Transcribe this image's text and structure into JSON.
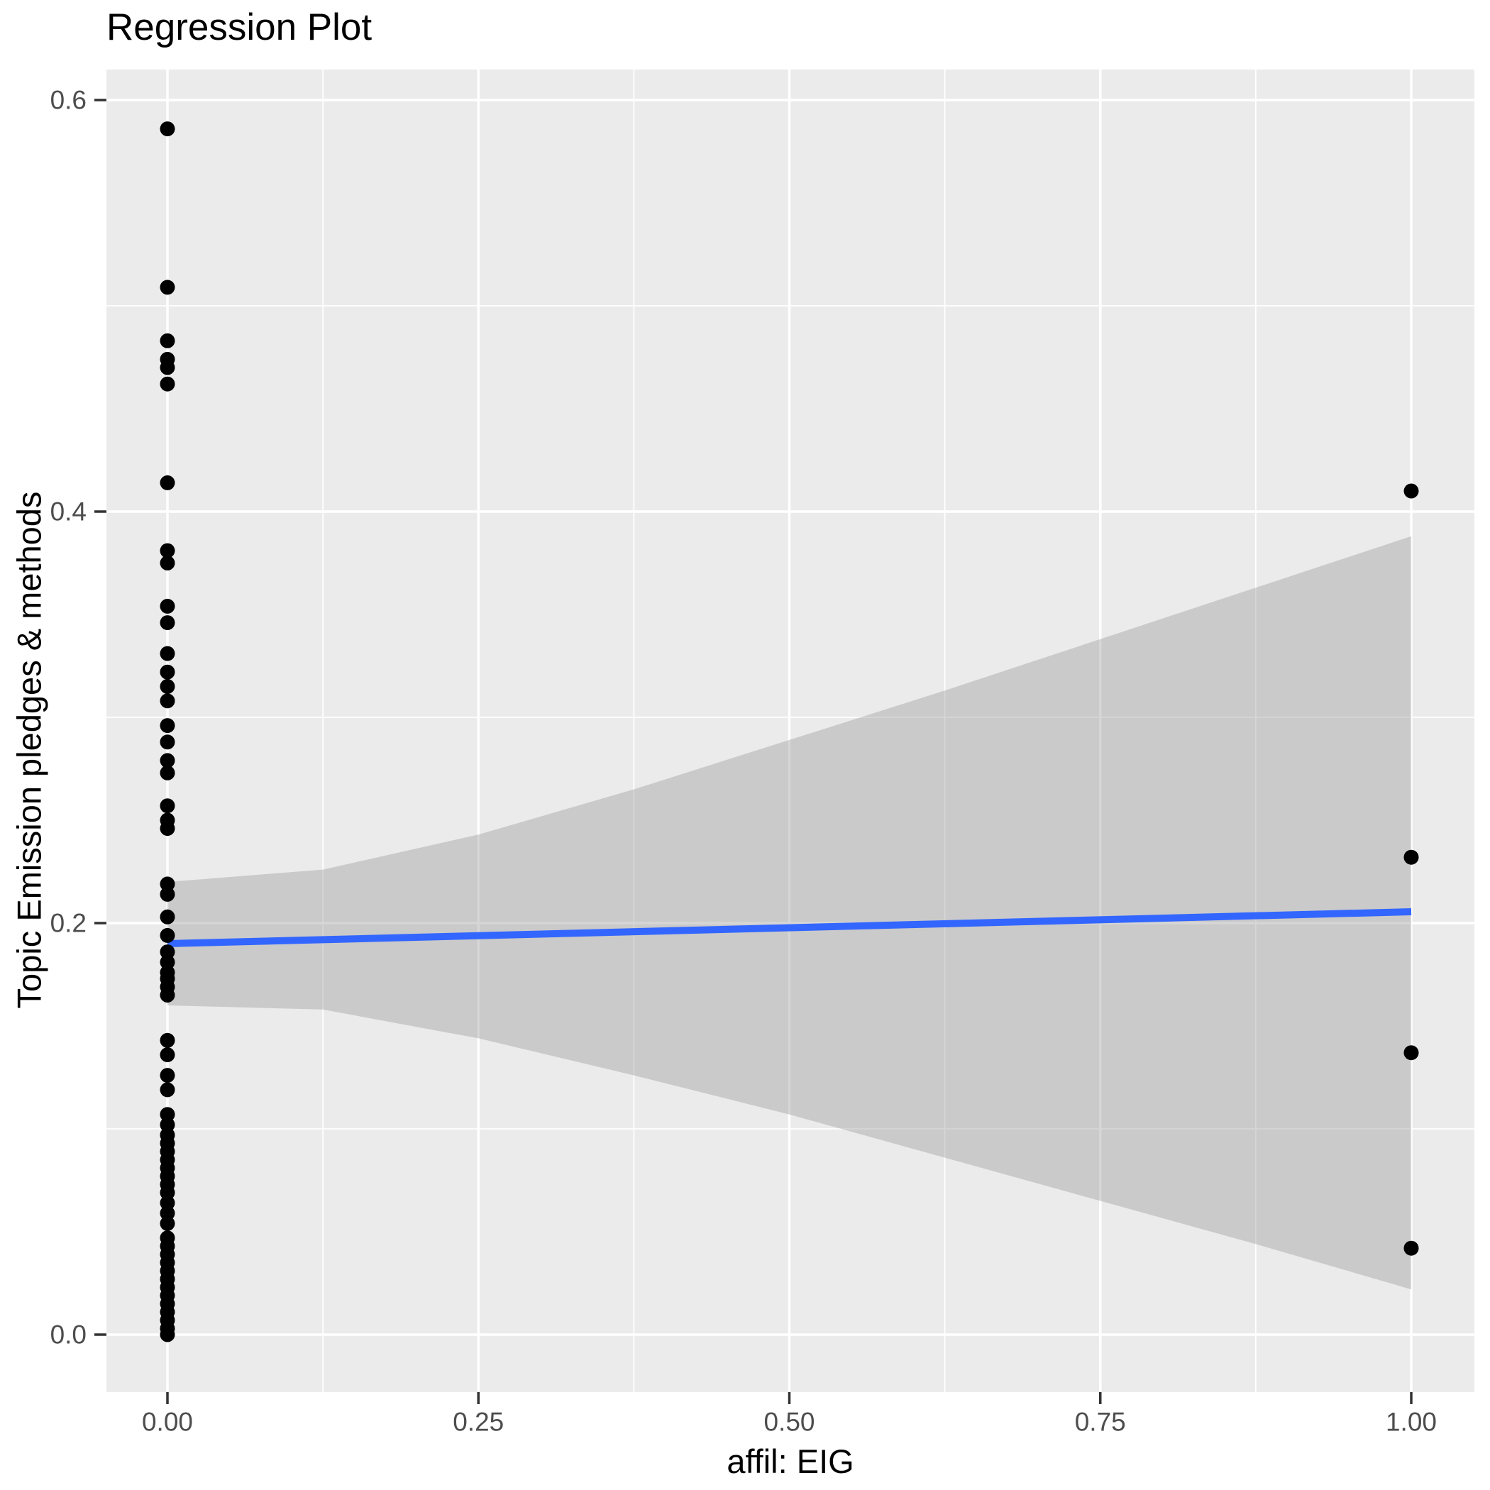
{
  "chart_data": {
    "type": "scatter",
    "title": "Regression Plot",
    "xlabel": "affil: EIG",
    "ylabel": "Topic Emission pledges & methods",
    "xlim": [
      -0.049,
      1.051
    ],
    "ylim": [
      -0.028,
      0.615
    ],
    "grid": "on",
    "legend": "none",
    "x_ticks": {
      "values": [
        0.0,
        0.25,
        0.5,
        0.75,
        1.0
      ],
      "labels": [
        "0.00",
        "0.25",
        "0.50",
        "0.75",
        "1.00"
      ]
    },
    "y_ticks": {
      "values": [
        0.0,
        0.2,
        0.4,
        0.6
      ],
      "labels": [
        "0.0",
        "0.2",
        "0.4",
        "0.6"
      ]
    },
    "x_minor_ticks": [
      0.125,
      0.375,
      0.625,
      0.875
    ],
    "y_minor_ticks": [
      0.1,
      0.3,
      0.5
    ],
    "colors": {
      "panel_background": "#EBEBEB",
      "grid_major": "#FFFFFF",
      "grid_minor": "#FFFFFF",
      "points": "#000000",
      "regression_line": "#3366FF",
      "confidence_band": "#999999",
      "confidence_band_opacity": 0.4,
      "tick_text": "#4D4D4D",
      "tick_mark": "#333333",
      "title_text": "#000000"
    },
    "series": [
      {
        "name": "observations",
        "type": "scatter",
        "points": [
          [
            0,
            0.586
          ],
          [
            0,
            0.509
          ],
          [
            0,
            0.483
          ],
          [
            0,
            0.474
          ],
          [
            0,
            0.47
          ],
          [
            0,
            0.462
          ],
          [
            0,
            0.414
          ],
          [
            0,
            0.381
          ],
          [
            0,
            0.375
          ],
          [
            0,
            0.354
          ],
          [
            0,
            0.346
          ],
          [
            0,
            0.331
          ],
          [
            0,
            0.322
          ],
          [
            0,
            0.315
          ],
          [
            0,
            0.308
          ],
          [
            0,
            0.296
          ],
          [
            0,
            0.288
          ],
          [
            0,
            0.279
          ],
          [
            0,
            0.273
          ],
          [
            0,
            0.257
          ],
          [
            0,
            0.25
          ],
          [
            0,
            0.246
          ],
          [
            0,
            0.219
          ],
          [
            0,
            0.214
          ],
          [
            0,
            0.203
          ],
          [
            0,
            0.194
          ],
          [
            0,
            0.186
          ],
          [
            0,
            0.181
          ],
          [
            0,
            0.176
          ],
          [
            0,
            0.173
          ],
          [
            0,
            0.169
          ],
          [
            0,
            0.165
          ],
          [
            0,
            0.143
          ],
          [
            0,
            0.136
          ],
          [
            0,
            0.126
          ],
          [
            0,
            0.119
          ],
          [
            0,
            0.107
          ],
          [
            0,
            0.102
          ],
          [
            0,
            0.097
          ],
          [
            0,
            0.093
          ],
          [
            0,
            0.089
          ],
          [
            0,
            0.085
          ],
          [
            0,
            0.081
          ],
          [
            0,
            0.077
          ],
          [
            0,
            0.073
          ],
          [
            0,
            0.069
          ],
          [
            0,
            0.064
          ],
          [
            0,
            0.059
          ],
          [
            0,
            0.054
          ],
          [
            0,
            0.047
          ],
          [
            0,
            0.043
          ],
          [
            0,
            0.039
          ],
          [
            0,
            0.035
          ],
          [
            0,
            0.031
          ],
          [
            0,
            0.027
          ],
          [
            0,
            0.023
          ],
          [
            0,
            0.019
          ],
          [
            0,
            0.015
          ],
          [
            0,
            0.011
          ],
          [
            0,
            0.007
          ],
          [
            0,
            0.003
          ],
          [
            0,
            0.0
          ],
          [
            1,
            0.41
          ],
          [
            1,
            0.232
          ],
          [
            1,
            0.137
          ],
          [
            1,
            0.042
          ]
        ]
      },
      {
        "name": "regression-line",
        "type": "line",
        "points": [
          [
            0,
            0.19
          ],
          [
            1,
            0.2055
          ]
        ]
      },
      {
        "name": "confidence-band",
        "type": "area",
        "upper": [
          [
            0,
            0.22
          ],
          [
            0.125,
            0.226
          ],
          [
            0.25,
            0.243
          ],
          [
            0.375,
            0.265
          ],
          [
            0.5,
            0.289
          ],
          [
            0.625,
            0.313
          ],
          [
            0.75,
            0.338
          ],
          [
            0.875,
            0.363
          ],
          [
            1,
            0.388
          ]
        ],
        "lower": [
          [
            0,
            0.16
          ],
          [
            0.125,
            0.158
          ],
          [
            0.25,
            0.144
          ],
          [
            0.375,
            0.126
          ],
          [
            0.5,
            0.107
          ],
          [
            0.625,
            0.086
          ],
          [
            0.75,
            0.065
          ],
          [
            0.875,
            0.044
          ],
          [
            1,
            0.022
          ]
        ]
      }
    ]
  }
}
